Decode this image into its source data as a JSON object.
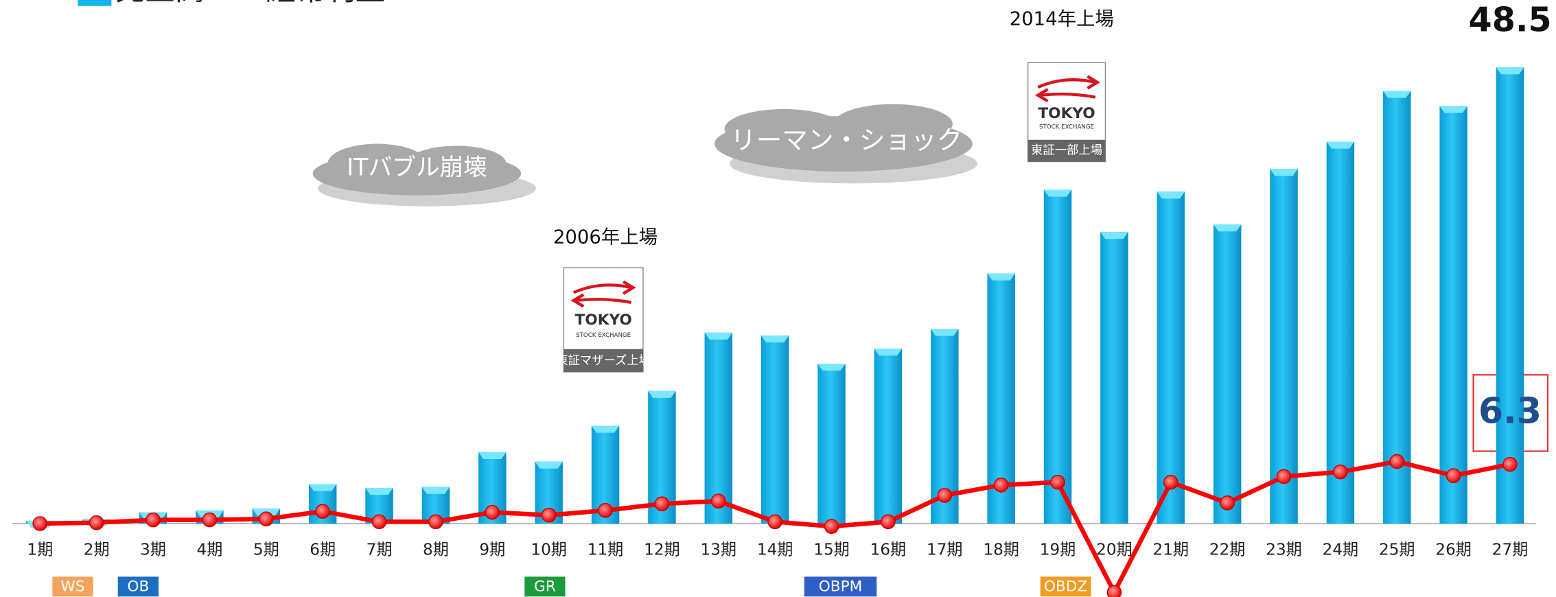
{
  "chart_data": {
    "type": "bar_line",
    "categories": [
      "1期",
      "2期",
      "3期",
      "4期",
      "5期",
      "6期",
      "7期",
      "8期",
      "9期",
      "10期",
      "11期",
      "12期",
      "13期",
      "14期",
      "15期",
      "16期",
      "17期",
      "18期",
      "19期",
      "20期",
      "21期",
      "22期",
      "23期",
      "24期",
      "25期",
      "26期",
      "27期"
    ],
    "series": [
      {
        "name": "売上高",
        "type": "bar",
        "color": "#12b4ec",
        "values": [
          0.3,
          0.5,
          1.2,
          1.4,
          1.6,
          4.2,
          3.8,
          3.9,
          7.6,
          6.6,
          10.4,
          14.1,
          20.3,
          20.0,
          17.0,
          18.6,
          20.7,
          26.6,
          35.5,
          31.0,
          35.3,
          31.8,
          37.7,
          40.6,
          46.0,
          44.4,
          48.5
        ]
      },
      {
        "name": "経常利益",
        "type": "line",
        "color": "#ff0000",
        "values": [
          0,
          0.1,
          0.4,
          0.4,
          0.5,
          1.3,
          0.2,
          0.2,
          1.2,
          0.9,
          1.4,
          2.1,
          2.4,
          0.2,
          -0.3,
          0.2,
          3.0,
          4.1,
          4.4,
          -7.3,
          4.4,
          2.2,
          5.0,
          5.5,
          6.6,
          5.1,
          6.3
        ]
      }
    ],
    "annotations": {
      "ipo2006": "2006年上場",
      "ipo2014": "2014年上場",
      "it_bubble": "ITバブル崩壊",
      "lehman": "リーマン・ショック"
    },
    "logos": [
      {
        "name": "TOKYO",
        "sub": "STOCK EXCHANGE",
        "caption": "東証マザーズ上場"
      },
      {
        "name": "TOKYO",
        "sub": "STOCK EXCHANGE",
        "caption": "東証一部上場"
      }
    ],
    "badges": [
      {
        "label": "WS",
        "color": "#f7a35c"
      },
      {
        "label": "OB",
        "color": "#1a6fc2"
      },
      {
        "label": "GR",
        "color": "#1a9c3a"
      },
      {
        "label": "OBPM",
        "color": "#2e5fc7"
      },
      {
        "label": "OBDZ",
        "color": "#f59a23"
      }
    ]
  }
}
